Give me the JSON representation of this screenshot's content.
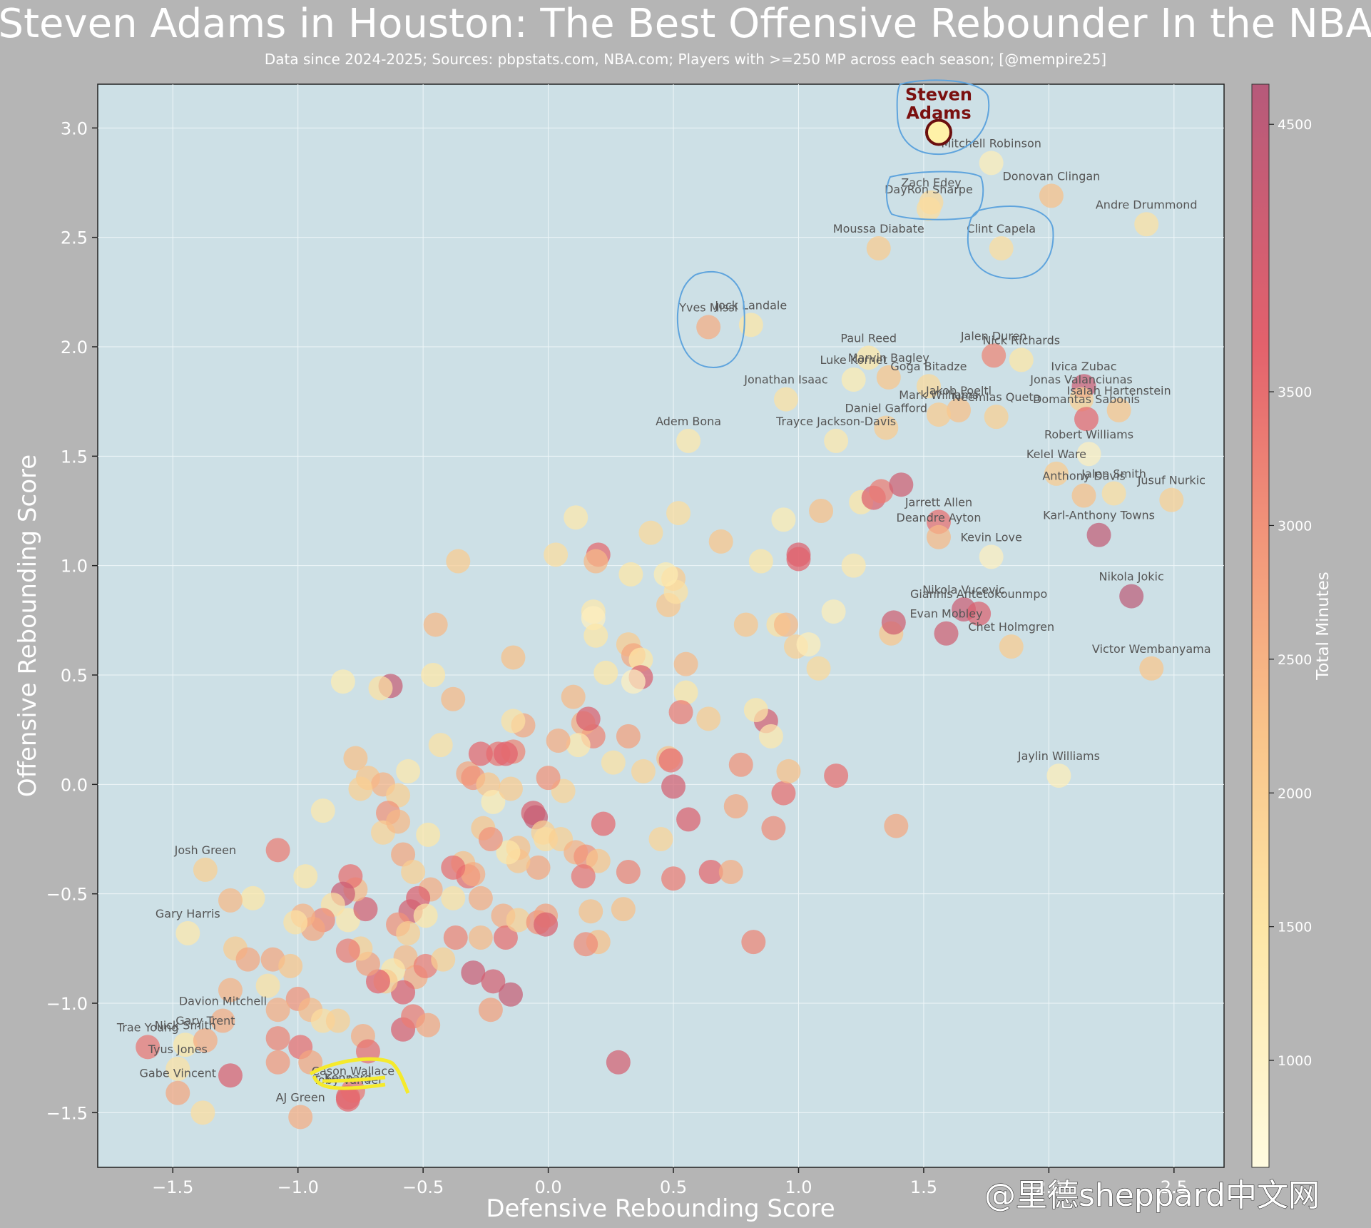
{
  "chart_data": {
    "type": "scatter",
    "title": "Steven Adams in Houston: The Best Offensive Rebounder In the NBA",
    "subtitle": "Data since 2024-2025; Sources: pbpstats.com, NBA.com; Players with >=250 MP across each season; [@mempire25]",
    "xlabel": "Defensive Rebounding Score",
    "ylabel": "Offensive Rebounding Score",
    "xlim": [
      -1.8,
      2.7
    ],
    "ylim": [
      -1.75,
      3.2
    ],
    "xticks": [
      -1.5,
      -1.0,
      -0.5,
      0.0,
      0.5,
      1.0,
      1.5,
      2.0,
      2.5
    ],
    "xtick_labels": [
      "−1.5",
      "−1.0",
      "−0.5",
      "0.0",
      "0.5",
      "1.0",
      "1.5",
      "2.0",
      "2.5"
    ],
    "yticks": [
      -1.5,
      -1.0,
      -0.5,
      0.0,
      0.5,
      1.0,
      1.5,
      2.0,
      2.5,
      3.0
    ],
    "ytick_labels": [
      "−1.5",
      "−1.0",
      "−0.5",
      "0.0",
      "0.5",
      "1.0",
      "1.5",
      "2.0",
      "2.5",
      "3.0"
    ],
    "grid": true,
    "colorbar": {
      "label": "Total Minutes",
      "min": 600,
      "max": 4650,
      "ticks": [
        1000,
        1500,
        2000,
        2500,
        3000,
        3500,
        4500
      ],
      "tick_labels": [
        "1000",
        "1500",
        "2000",
        "2500",
        "3000",
        "3500",
        "4500"
      ]
    },
    "highlight": {
      "name": "Steven Adams",
      "label_line1": "Steven",
      "label_line2": "Adams",
      "x": 1.56,
      "y": 2.98,
      "minutes": 1900
    },
    "labeled_points": [
      {
        "name": "Mitchell Robinson",
        "x": 1.77,
        "y": 2.84,
        "minutes": 1200
      },
      {
        "name": "Donovan Clingan",
        "x": 2.01,
        "y": 2.69,
        "minutes": 2300
      },
      {
        "name": "Zach Edey",
        "x": 1.53,
        "y": 2.66,
        "minutes": 1800
      },
      {
        "name": "DayRon Sharpe",
        "x": 1.52,
        "y": 2.63,
        "minutes": 1700
      },
      {
        "name": "Andre Drummond",
        "x": 2.39,
        "y": 2.56,
        "minutes": 1600
      },
      {
        "name": "Moussa Diabate",
        "x": 1.32,
        "y": 2.45,
        "minutes": 2100
      },
      {
        "name": "Clint Capela",
        "x": 1.81,
        "y": 2.45,
        "minutes": 1700
      },
      {
        "name": "Yves Missi",
        "x": 0.64,
        "y": 2.09,
        "minutes": 2600
      },
      {
        "name": "Jock Landale",
        "x": 0.81,
        "y": 2.1,
        "minutes": 1500
      },
      {
        "name": "Paul Reed",
        "x": 1.28,
        "y": 1.95,
        "minutes": 1500
      },
      {
        "name": "Jalen Duren",
        "x": 1.78,
        "y": 1.96,
        "minutes": 3200
      },
      {
        "name": "Nick Richards",
        "x": 1.89,
        "y": 1.94,
        "minutes": 1500
      },
      {
        "name": "Luke Kornet",
        "x": 1.22,
        "y": 1.85,
        "minutes": 1300
      },
      {
        "name": "Marvin Bagley",
        "x": 1.36,
        "y": 1.86,
        "minutes": 2200
      },
      {
        "name": "Goga Bitadze",
        "x": 1.52,
        "y": 1.82,
        "minutes": 1800
      },
      {
        "name": "Ivica Zubac",
        "x": 2.14,
        "y": 1.82,
        "minutes": 4200
      },
      {
        "name": "Jonathan Isaac",
        "x": 0.95,
        "y": 1.76,
        "minutes": 1600
      },
      {
        "name": "Jonas Valanciunas",
        "x": 2.13,
        "y": 1.76,
        "minutes": 2000
      },
      {
        "name": "Jakob Poeltl",
        "x": 1.64,
        "y": 1.71,
        "minutes": 2300
      },
      {
        "name": "Isaiah Hartenstein",
        "x": 2.28,
        "y": 1.71,
        "minutes": 2200
      },
      {
        "name": "Mark Williams",
        "x": 1.56,
        "y": 1.69,
        "minutes": 2100
      },
      {
        "name": "Neemias Queta",
        "x": 1.79,
        "y": 1.68,
        "minutes": 2000
      },
      {
        "name": "Domantas Sabonis",
        "x": 2.15,
        "y": 1.67,
        "minutes": 3600
      },
      {
        "name": "Daniel Gafford",
        "x": 1.35,
        "y": 1.63,
        "minutes": 2100
      },
      {
        "name": "Trayce Jackson-Davis",
        "x": 1.15,
        "y": 1.57,
        "minutes": 1400
      },
      {
        "name": "Adem Bona",
        "x": 0.56,
        "y": 1.57,
        "minutes": 1400
      },
      {
        "name": "Robert Williams",
        "x": 2.16,
        "y": 1.51,
        "minutes": 1100
      },
      {
        "name": "Kelel Ware",
        "x": 2.03,
        "y": 1.42,
        "minutes": 2100
      },
      {
        "name": "Anthony Davis",
        "x": 2.14,
        "y": 1.32,
        "minutes": 2300
      },
      {
        "name": "Jalen Smith",
        "x": 2.26,
        "y": 1.33,
        "minutes": 1700
      },
      {
        "name": "Jusuf Nurkic",
        "x": 2.49,
        "y": 1.3,
        "minutes": 2000
      },
      {
        "name": "Jarrett Allen",
        "x": 1.56,
        "y": 1.2,
        "minutes": 3500
      },
      {
        "name": "Deandre Ayton",
        "x": 1.56,
        "y": 1.13,
        "minutes": 2400
      },
      {
        "name": "Karl-Anthony Towns",
        "x": 2.2,
        "y": 1.14,
        "minutes": 4400
      },
      {
        "name": "Kevin Love",
        "x": 1.77,
        "y": 1.04,
        "minutes": 1100
      },
      {
        "name": "Nikola Jokic",
        "x": 2.33,
        "y": 0.86,
        "minutes": 4500
      },
      {
        "name": "Nikola Vucevic",
        "x": 1.66,
        "y": 0.8,
        "minutes": 4200
      },
      {
        "name": "Giannis Antetokounmpo",
        "x": 1.72,
        "y": 0.78,
        "minutes": 3900
      },
      {
        "name": "Evan Mobley",
        "x": 1.59,
        "y": 0.69,
        "minutes": 4100
      },
      {
        "name": "Chet Holmgren",
        "x": 1.85,
        "y": 0.63,
        "minutes": 2100
      },
      {
        "name": "Victor Wembanyama",
        "x": 2.41,
        "y": 0.53,
        "minutes": 2200
      },
      {
        "name": "Jaylin Williams",
        "x": 2.04,
        "y": 0.04,
        "minutes": 1200
      },
      {
        "name": "Josh Green",
        "x": -1.37,
        "y": -0.39,
        "minutes": 2000
      },
      {
        "name": "Gary Harris",
        "x": -1.44,
        "y": -0.68,
        "minutes": 1400
      },
      {
        "name": "Trae Young",
        "x": -1.6,
        "y": -1.2,
        "minutes": 3400
      },
      {
        "name": "Davion Mitchell",
        "x": -1.3,
        "y": -1.08,
        "minutes": 2600
      },
      {
        "name": "Nick Smith",
        "x": -1.45,
        "y": -1.19,
        "minutes": 1500
      },
      {
        "name": "Gary Trent",
        "x": -1.37,
        "y": -1.17,
        "minutes": 2600
      },
      {
        "name": "Tyus Jones",
        "x": -1.48,
        "y": -1.3,
        "minutes": 1600
      },
      {
        "name": "Gabe Vincent",
        "x": -1.48,
        "y": -1.41,
        "minutes": 2700
      },
      {
        "name": "AJ Green",
        "x": -0.99,
        "y": -1.52,
        "minutes": 2600
      },
      {
        "name": "Kennard",
        "x": -0.8,
        "y": -1.43,
        "minutes": 3800
      },
      {
        "name": "Cason Wallace",
        "x": -0.78,
        "y": -1.4,
        "minutes": 3400
      },
      {
        "name": "Toby Vander",
        "x": -0.8,
        "y": -1.44,
        "minutes": 3600
      }
    ],
    "other_points": [
      [
        -0.63,
        0.45,
        4300
      ],
      [
        -0.82,
        0.47,
        1300
      ],
      [
        -0.67,
        0.44,
        1600
      ],
      [
        -0.45,
        0.73,
        2400
      ],
      [
        -0.46,
        0.5,
        1500
      ],
      [
        -0.38,
        0.39,
        2400
      ],
      [
        -0.43,
        0.18,
        1600
      ],
      [
        -0.77,
        0.12,
        2300
      ],
      [
        -0.72,
        0.03,
        2200
      ],
      [
        -0.66,
        0.0,
        2500
      ],
      [
        -0.56,
        0.06,
        1400
      ],
      [
        -0.6,
        -0.05,
        2000
      ],
      [
        -0.64,
        -0.13,
        3000
      ],
      [
        -0.66,
        -0.22,
        1900
      ],
      [
        -0.6,
        -0.17,
        2400
      ],
      [
        -0.48,
        -0.23,
        1500
      ],
      [
        -0.58,
        -0.32,
        2700
      ],
      [
        -0.54,
        -0.4,
        2000
      ],
      [
        -0.47,
        -0.48,
        2600
      ],
      [
        -0.52,
        -0.52,
        3800
      ],
      [
        -0.55,
        -0.58,
        4000
      ],
      [
        -0.49,
        -0.6,
        1500
      ],
      [
        -0.6,
        -0.64,
        3000
      ],
      [
        -0.56,
        -0.68,
        2000
      ],
      [
        -0.57,
        -0.79,
        2400
      ],
      [
        -0.53,
        -0.88,
        2600
      ],
      [
        -0.58,
        -0.95,
        3800
      ],
      [
        -0.62,
        -0.85,
        1500
      ],
      [
        -0.65,
        -0.9,
        2100
      ],
      [
        -0.68,
        -0.9,
        3700
      ],
      [
        -0.72,
        -0.82,
        2800
      ],
      [
        -0.75,
        -0.75,
        2000
      ],
      [
        -0.8,
        -0.76,
        3300
      ],
      [
        -0.8,
        -0.62,
        1400
      ],
      [
        -0.73,
        -0.57,
        4000
      ],
      [
        -0.77,
        -0.48,
        2400
      ],
      [
        -0.79,
        -0.42,
        3500
      ],
      [
        -0.82,
        -0.5,
        4200
      ],
      [
        -0.86,
        -0.55,
        1600
      ],
      [
        -0.9,
        -0.62,
        3200
      ],
      [
        -0.94,
        -0.66,
        2700
      ],
      [
        -0.98,
        -0.6,
        2500
      ],
      [
        -1.01,
        -0.63,
        1600
      ],
      [
        -0.97,
        -0.42,
        1500
      ],
      [
        -1.08,
        -0.3,
        3300
      ],
      [
        -1.18,
        -0.52,
        1500
      ],
      [
        -1.27,
        -0.53,
        2400
      ],
      [
        -1.25,
        -0.75,
        2100
      ],
      [
        -1.2,
        -0.8,
        2700
      ],
      [
        -1.1,
        -0.8,
        2700
      ],
      [
        -1.03,
        -0.83,
        2200
      ],
      [
        -1.12,
        -0.92,
        1600
      ],
      [
        -1.27,
        -0.94,
        2500
      ],
      [
        -1.0,
        -0.98,
        3000
      ],
      [
        -1.08,
        -1.03,
        2600
      ],
      [
        -0.95,
        -1.03,
        2400
      ],
      [
        -0.9,
        -1.08,
        1700
      ],
      [
        -0.84,
        -1.08,
        2000
      ],
      [
        -1.08,
        -1.16,
        3200
      ],
      [
        -0.99,
        -1.2,
        3500
      ],
      [
        -0.95,
        -1.27,
        2700
      ],
      [
        -1.08,
        -1.27,
        2900
      ],
      [
        -1.27,
        -1.33,
        3900
      ],
      [
        -1.38,
        -1.5,
        1700
      ],
      [
        -0.74,
        -1.15,
        2600
      ],
      [
        -0.72,
        -1.22,
        3500
      ],
      [
        -0.58,
        -1.12,
        3900
      ],
      [
        -0.54,
        -1.06,
        3300
      ],
      [
        -0.48,
        -1.1,
        2700
      ],
      [
        -0.49,
        -0.83,
        3300
      ],
      [
        -0.42,
        -0.8,
        2000
      ],
      [
        -0.37,
        -0.7,
        3200
      ],
      [
        -0.3,
        -0.86,
        4200
      ],
      [
        -0.22,
        -0.9,
        4000
      ],
      [
        -0.15,
        -0.96,
        4300
      ],
      [
        -0.23,
        -1.03,
        2800
      ],
      [
        -0.27,
        -0.7,
        2400
      ],
      [
        -0.27,
        -0.52,
        2600
      ],
      [
        -0.18,
        -0.6,
        2600
      ],
      [
        -0.17,
        -0.7,
        3500
      ],
      [
        -0.12,
        -0.62,
        2000
      ],
      [
        -0.04,
        -0.63,
        3000
      ],
      [
        -0.01,
        -0.6,
        2800
      ],
      [
        -0.01,
        -0.64,
        3900
      ],
      [
        -0.04,
        -0.38,
        2700
      ],
      [
        -0.12,
        -0.35,
        2200
      ],
      [
        -0.12,
        -0.29,
        2300
      ],
      [
        -0.16,
        -0.31,
        1500
      ],
      [
        -0.26,
        -0.2,
        2200
      ],
      [
        -0.23,
        -0.25,
        3000
      ],
      [
        -0.34,
        -0.36,
        2300
      ],
      [
        -0.32,
        -0.42,
        3500
      ],
      [
        -0.3,
        -0.41,
        2600
      ],
      [
        -0.38,
        -0.38,
        3500
      ],
      [
        -0.38,
        -0.52,
        1600
      ],
      [
        -0.32,
        0.05,
        2700
      ],
      [
        -0.3,
        0.03,
        3000
      ],
      [
        -0.24,
        0.0,
        2200
      ],
      [
        -0.22,
        -0.08,
        1300
      ],
      [
        -0.15,
        -0.02,
        2100
      ],
      [
        -0.06,
        -0.13,
        3900
      ],
      [
        -0.05,
        -0.15,
        4300
      ],
      [
        -0.02,
        -0.22,
        2000
      ],
      [
        -0.01,
        -0.25,
        1700
      ],
      [
        0.05,
        -0.25,
        2000
      ],
      [
        0.11,
        -0.31,
        2500
      ],
      [
        0.15,
        -0.33,
        3000
      ],
      [
        0.22,
        -0.18,
        3600
      ],
      [
        0.2,
        -0.35,
        2200
      ],
      [
        0.14,
        -0.42,
        3400
      ],
      [
        0.17,
        -0.58,
        2300
      ],
      [
        0.2,
        -0.72,
        2300
      ],
      [
        0.15,
        -0.73,
        3100
      ],
      [
        0.3,
        -0.57,
        2300
      ],
      [
        0.32,
        -0.4,
        3200
      ],
      [
        0.5,
        -0.43,
        3300
      ],
      [
        0.45,
        -0.25,
        1900
      ],
      [
        0.56,
        -0.16,
        3800
      ],
      [
        0.65,
        -0.4,
        3600
      ],
      [
        0.73,
        -0.4,
        2600
      ],
      [
        0.82,
        -0.72,
        3200
      ],
      [
        0.75,
        -0.1,
        2700
      ],
      [
        0.9,
        -0.2,
        3100
      ],
      [
        0.94,
        -0.04,
        3500
      ],
      [
        0.96,
        0.06,
        2300
      ],
      [
        0.87,
        0.29,
        4000
      ],
      [
        0.89,
        0.22,
        1400
      ],
      [
        0.83,
        0.34,
        1500
      ],
      [
        0.77,
        0.09,
        3000
      ],
      [
        0.64,
        0.3,
        2100
      ],
      [
        0.55,
        0.42,
        1500
      ],
      [
        0.53,
        0.33,
        3300
      ],
      [
        0.48,
        0.12,
        2300
      ],
      [
        0.49,
        0.11,
        3500
      ],
      [
        0.5,
        -0.01,
        4000
      ],
      [
        0.38,
        0.06,
        1900
      ],
      [
        0.32,
        0.22,
        2800
      ],
      [
        0.26,
        0.1,
        1600
      ],
      [
        0.18,
        0.22,
        3200
      ],
      [
        0.14,
        0.28,
        2600
      ],
      [
        0.16,
        0.3,
        3900
      ],
      [
        0.1,
        0.4,
        2400
      ],
      [
        0.12,
        0.18,
        1400
      ],
      [
        0.04,
        0.2,
        2600
      ],
      [
        0.06,
        -0.03,
        1900
      ],
      [
        -0.1,
        0.27,
        2700
      ],
      [
        -0.14,
        0.29,
        1600
      ],
      [
        -0.2,
        0.14,
        3400
      ],
      [
        -0.14,
        0.15,
        3200
      ],
      [
        -0.14,
        0.58,
        2300
      ],
      [
        0.23,
        0.51,
        1500
      ],
      [
        0.32,
        0.64,
        2100
      ],
      [
        0.34,
        0.59,
        2700
      ],
      [
        0.37,
        0.57,
        1500
      ],
      [
        0.37,
        0.49,
        3900
      ],
      [
        0.34,
        0.47,
        1100
      ],
      [
        0.55,
        0.55,
        2400
      ],
      [
        0.48,
        0.82,
        2200
      ],
      [
        0.5,
        0.94,
        2100
      ],
      [
        0.51,
        0.88,
        1600
      ],
      [
        0.47,
        0.96,
        1300
      ],
      [
        0.41,
        1.15,
        1800
      ],
      [
        0.33,
        0.96,
        1500
      ],
      [
        0.52,
        1.24,
        1700
      ],
      [
        0.69,
        1.11,
        2200
      ],
      [
        0.79,
        0.73,
        2200
      ],
      [
        0.85,
        1.02,
        1500
      ],
      [
        0.92,
        0.73,
        1600
      ],
      [
        0.95,
        0.73,
        2400
      ],
      [
        0.99,
        0.63,
        2000
      ],
      [
        1.04,
        0.64,
        1200
      ],
      [
        1.08,
        0.53,
        1800
      ],
      [
        1.14,
        0.79,
        1200
      ],
      [
        1.22,
        1.0,
        1400
      ],
      [
        1.25,
        1.29,
        1500
      ],
      [
        1.3,
        1.31,
        3800
      ],
      [
        1.33,
        1.34,
        3300
      ],
      [
        1.41,
        1.37,
        4100
      ],
      [
        1.09,
        1.25,
        2300
      ],
      [
        1.0,
        1.05,
        3800
      ],
      [
        1.0,
        1.03,
        3700
      ],
      [
        0.94,
        1.21,
        1300
      ],
      [
        0.2,
        1.05,
        3600
      ],
      [
        0.19,
        1.02,
        2400
      ],
      [
        0.11,
        1.22,
        1400
      ],
      [
        0.03,
        1.05,
        1700
      ],
      [
        -0.36,
        1.02,
        2100
      ],
      [
        0.18,
        0.79,
        1400
      ],
      [
        0.18,
        0.76,
        1100
      ],
      [
        0.19,
        0.68,
        1500
      ],
      [
        1.37,
        0.69,
        2200
      ],
      [
        1.38,
        0.74,
        4100
      ],
      [
        1.39,
        -0.19,
        2700
      ],
      [
        1.15,
        0.04,
        3500
      ],
      [
        0.28,
        -1.27,
        4000
      ],
      [
        -0.27,
        0.14,
        3600
      ],
      [
        -0.17,
        0.14,
        3700
      ],
      [
        0.0,
        0.03,
        3000
      ],
      [
        -0.9,
        -0.12,
        1400
      ],
      [
        -0.75,
        -0.02,
        2000
      ]
    ]
  },
  "watermark": "@里德sheppard中文网",
  "annotation_colors": {
    "blue": "#5fa4dd",
    "yellow": "#f5ea2c",
    "highlight_edge": "#6b0f0f",
    "highlight_fill": "#fff2a8"
  }
}
